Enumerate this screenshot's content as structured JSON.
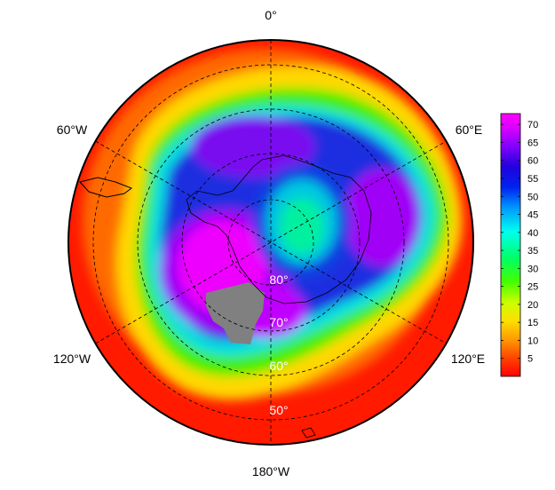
{
  "map": {
    "projection": "south polar stereographic",
    "longitude_labels": [
      "0°",
      "60°E",
      "120°E",
      "180°W",
      "120°W",
      "60°W"
    ],
    "latitude_labels": [
      "80°",
      "70°",
      "60°",
      "50°"
    ],
    "land_mask_color": "#808080"
  },
  "colorbar": {
    "ticks": [
      "70",
      "65",
      "60",
      "55",
      "50",
      "45",
      "40",
      "35",
      "30",
      "25",
      "20",
      "15",
      "10",
      "5"
    ],
    "range": [
      0,
      73
    ],
    "colors": [
      "#ff0000",
      "#ff3300",
      "#ff7700",
      "#ffaa00",
      "#ffee00",
      "#ccff00",
      "#66ff00",
      "#00ff44",
      "#00ffcc",
      "#00ccff",
      "#0066ff",
      "#0011dd",
      "#3300ee",
      "#9900ff",
      "#dd00ff",
      "#ff00ff"
    ]
  }
}
